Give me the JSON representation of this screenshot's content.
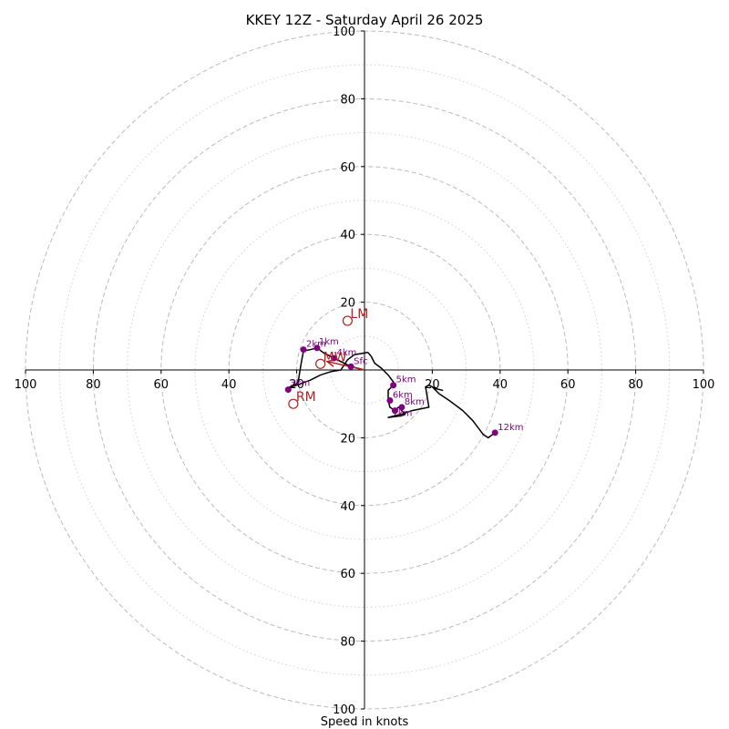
{
  "chart_data": {
    "type": "hodograph",
    "title": "KKEY 12Z - Saturday April 26 2025",
    "xlabel": "Speed in knots",
    "range": [
      -100,
      100
    ],
    "rings_major": [
      20,
      40,
      60,
      80,
      100
    ],
    "rings_minor": [
      10,
      30,
      50,
      70,
      90
    ],
    "axis_ticks": [
      {
        "v": -100,
        "label": "100"
      },
      {
        "v": -80,
        "label": "80"
      },
      {
        "v": -60,
        "label": "60"
      },
      {
        "v": -40,
        "label": "40"
      },
      {
        "v": -20,
        "label": "20"
      },
      {
        "v": 20,
        "label": "20"
      },
      {
        "v": 40,
        "label": "40"
      },
      {
        "v": 60,
        "label": "60"
      },
      {
        "v": 80,
        "label": "80"
      },
      {
        "v": 100,
        "label": "100"
      }
    ],
    "trace": [
      [
        0,
        0
      ],
      [
        -2,
        0.5
      ],
      [
        -4,
        1
      ],
      [
        -6,
        2
      ],
      [
        -8,
        3
      ],
      [
        -10,
        4
      ],
      [
        -12,
        5
      ],
      [
        -14,
        6.5
      ],
      [
        -16,
        6
      ],
      [
        -17,
        5.8
      ],
      [
        -18,
        5.5
      ],
      [
        -18.5,
        3
      ],
      [
        -19,
        0
      ],
      [
        -19.5,
        -3
      ],
      [
        -20,
        -4
      ],
      [
        -22,
        -5
      ],
      [
        -23,
        -5.5
      ],
      [
        -20,
        -4.5
      ],
      [
        -16,
        -3
      ],
      [
        -13,
        -1.5
      ],
      [
        -10,
        -0.5
      ],
      [
        -7,
        0
      ],
      [
        -5,
        3
      ],
      [
        -3,
        4.5
      ],
      [
        0,
        5
      ],
      [
        1,
        5.2
      ],
      [
        2,
        4
      ],
      [
        3,
        2
      ],
      [
        5,
        0.5
      ],
      [
        7,
        -1.5
      ],
      [
        8.5,
        -3.5
      ],
      [
        9,
        -5
      ],
      [
        8,
        -5
      ],
      [
        7,
        -6
      ],
      [
        7,
        -9
      ],
      [
        7.5,
        -11
      ],
      [
        9,
        -12
      ],
      [
        10,
        -11
      ],
      [
        11,
        -12
      ],
      [
        12,
        -13
      ],
      [
        11,
        -13.5
      ],
      [
        7,
        -14
      ],
      [
        11,
        -13
      ],
      [
        14,
        -12
      ],
      [
        19,
        -11
      ],
      [
        18,
        -5
      ],
      [
        19,
        -4.5
      ],
      [
        21,
        -5.5
      ],
      [
        23,
        -6
      ],
      [
        21,
        -5.5
      ],
      [
        20,
        -5
      ],
      [
        22,
        -7
      ],
      [
        25,
        -9
      ],
      [
        29,
        -12
      ],
      [
        32,
        -15
      ],
      [
        35,
        -19
      ],
      [
        36.5,
        -20
      ],
      [
        38.5,
        -18.5
      ]
    ],
    "points": [
      {
        "label": "Sfc",
        "u": -4,
        "v": 1,
        "lx": 3,
        "ly": -3
      },
      {
        "label": "1km",
        "u": -14,
        "v": 6.5,
        "lx": 2,
        "ly": -4
      },
      {
        "label": "2km",
        "u": -18,
        "v": 6,
        "lx": 3,
        "ly": -3
      },
      {
        "label": "3km",
        "u": -22.5,
        "v": -5.8,
        "lx": 2,
        "ly": -4
      },
      {
        "label": "4km",
        "u": -9,
        "v": 3.5,
        "lx": 3,
        "ly": -3
      },
      {
        "label": "5km",
        "u": 8.5,
        "v": -4.5,
        "lx": 3,
        "ly": -3
      },
      {
        "label": "6km",
        "u": 7.5,
        "v": -9,
        "lx": 3,
        "ly": -3
      },
      {
        "label": "7km",
        "u": 9,
        "v": -12,
        "lx": -3,
        "ly": 6
      },
      {
        "label": "8km",
        "u": 11,
        "v": -11,
        "lx": 3,
        "ly": -3
      },
      {
        "label": "12km",
        "u": 38.5,
        "v": -18.5,
        "lx": 3,
        "ly": -3
      }
    ],
    "motion_markers": [
      {
        "label": "LM",
        "u": -5,
        "v": 14.5
      },
      {
        "label": "RM",
        "u": -21,
        "v": -10
      },
      {
        "label": "MW",
        "u": -13,
        "v": 1.8
      }
    ],
    "mean_shear_arrow": {
      "from": [
        0,
        0
      ],
      "to": [
        -11,
        2.5
      ]
    },
    "colors": {
      "trace": "#000000",
      "points": "#800080",
      "motion": "#b22222",
      "major_ring": "#bbbbbb",
      "minor_ring": "#d0d0d0"
    }
  }
}
